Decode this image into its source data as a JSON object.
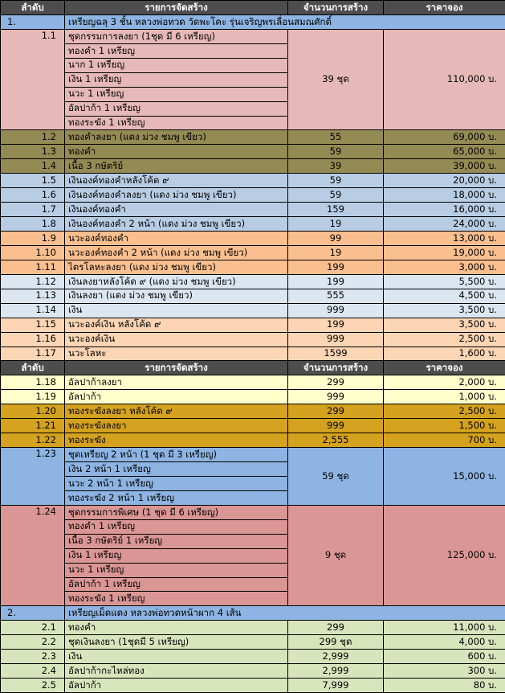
{
  "table": {
    "header_color": "#4d4d4d",
    "sections": [
      {
        "header": [
          "ลำดับ",
          "รายการจัดสร้าง",
          "จำนวนการสร้าง",
          "ราคาจอง"
        ],
        "rows": [
          {
            "no": "1.",
            "title": "เหรียญฉลุ 3 ชั้น หลวงพ่อทวด วัดพะโคะ รุ่นเจริญพรเลื่อนสมณศักดิ์",
            "color": "#8db4e2"
          },
          {
            "no": "1.1",
            "items": [
              "ชุดกรรมการลงยา (1ชุด มี 6 เหรียญ)",
              "ทองคำ 1 เหรียญ",
              "นาก 1 เหรียญ",
              "เงิน 1 เหรียญ",
              "นวะ 1 เหรียญ",
              "อัลปาก้า 1 เหรียญ",
              "ทองระฆัง 1 เหรียญ"
            ],
            "qty": "39 ชุด",
            "price": "110,000 บ.",
            "color": "#e6b9b8"
          },
          {
            "no": "1.2",
            "items": [
              "ทองคำลงยา (แดง ม่วง ชมพู เขียว)"
            ],
            "qty": "55",
            "price": "69,000 บ.",
            "color": "#948a54"
          },
          {
            "no": "1.3",
            "items": [
              "ทองคำ"
            ],
            "qty": "59",
            "price": "65,000 บ.",
            "color": "#948a54"
          },
          {
            "no": "1.4",
            "items": [
              "เนื้อ 3 กษัตริย์"
            ],
            "qty": "39",
            "price": "39,000 บ.",
            "color": "#948a54"
          },
          {
            "no": "1.5",
            "items": [
              "เงินองค์ทองคำหลังโค้ด ๙"
            ],
            "qty": "59",
            "price": "20,000 บ.",
            "color": "#b8cce4"
          },
          {
            "no": "1.6",
            "items": [
              "เงินองค์ทองคำลงยา (แดง ม่วง ชมพู เขียว)"
            ],
            "qty": "59",
            "price": "18,000 บ.",
            "color": "#b8cce4"
          },
          {
            "no": "1.7",
            "items": [
              "เงินองค์ทองคำ"
            ],
            "qty": "159",
            "price": "16,000 บ.",
            "color": "#b8cce4"
          },
          {
            "no": "1.8",
            "items": [
              "เงินองค์ทองคำ 2 หน้า (แดง ม่วง ชมพู เขียว)"
            ],
            "qty": "19",
            "price": "24,000 บ.",
            "color": "#b8cce4"
          },
          {
            "no": "1.9",
            "items": [
              "นวะองค์ทองคำ"
            ],
            "qty": "99",
            "price": "13,000 บ.",
            "color": "#fabf8f"
          },
          {
            "no": "1.10",
            "items": [
              "นวะองค์ทองคำ 2 หน้า (แดง ม่วง ชมพู เขียว)"
            ],
            "qty": "19",
            "price": "19,000 บ.",
            "color": "#fabf8f"
          },
          {
            "no": "1.11",
            "items": [
              "ไตรโลหะลงยา (แดง ม่วง ชมพู เขียว)"
            ],
            "qty": "199",
            "price": "3,000 บ.",
            "color": "#fabf8f"
          },
          {
            "no": "1.12",
            "items": [
              "เงินลงยาหลังโค้ด ๙ (แดง ม่วง ชมพู เขียว)"
            ],
            "qty": "199",
            "price": "5,500 บ.",
            "color": "#dce6f1"
          },
          {
            "no": "1.13",
            "items": [
              "เงินลงยา (แดง ม่วง ชมพู เขียว)"
            ],
            "qty": "555",
            "price": "4,500 บ.",
            "color": "#dce6f1"
          },
          {
            "no": "1.14",
            "items": [
              "เงิน"
            ],
            "qty": "999",
            "price": "3,500 บ.",
            "color": "#dce6f1"
          },
          {
            "no": "1.15",
            "items": [
              "นวะองค์เงิน หลังโค้ด ๙"
            ],
            "qty": "199",
            "price": "3,500 บ.",
            "color": "#fcd5b4"
          },
          {
            "no": "1.16",
            "items": [
              "นวะองค์เงิน"
            ],
            "qty": "999",
            "price": "2,500 บ.",
            "color": "#fcd5b4"
          },
          {
            "no": "1.17",
            "items": [
              "นวะโลหะ"
            ],
            "qty": "1599",
            "price": "1,600 บ.",
            "color": "#fcd5b4"
          }
        ]
      },
      {
        "header": [
          "ลำดับ",
          "รายการจัดสร้าง",
          "จำนวนการสร้าง",
          "ราคาจอง"
        ],
        "rows": [
          {
            "no": "1.18",
            "items": [
              "อัลปาก้าลงยา"
            ],
            "qty": "299",
            "price": "2,000 บ.",
            "color": "#ffffcc"
          },
          {
            "no": "1.19",
            "items": [
              "อัลปาก้า"
            ],
            "qty": "999",
            "price": "1,000 บ.",
            "color": "#ffffcc"
          },
          {
            "no": "1.20",
            "items": [
              "ทองระฆังลงยา หลังโค้ด ๙"
            ],
            "qty": "299",
            "price": "2,500 บ.",
            "color": "#d4a21e"
          },
          {
            "no": "1.21",
            "items": [
              "ทองระฆังลงยา"
            ],
            "qty": "999",
            "price": "1,500 บ.",
            "color": "#d4a21e"
          },
          {
            "no": "1.22",
            "items": [
              "ทองระฆัง"
            ],
            "qty": "2,555",
            "price": "700 บ.",
            "color": "#d4a21e"
          },
          {
            "no": "1.23",
            "items": [
              "ชุดเหรียญ 2 หน้า (1 ชุด มี 3 เหรียญ)",
              "เงิน 2 หน้า 1 เหรียญ",
              "นวะ 2 หน้า 1 เหรียญ",
              "ทองระฆัง 2 หน้า 1 เหรียญ"
            ],
            "qty": "59 ชุด",
            "price": "15,000 บ.",
            "color": "#8db4e2"
          },
          {
            "no": "1.24",
            "items": [
              "ชุดกรรมการพิเศษ (1 ชุด มี 6 เหรียญ)",
              "ทองคำ 1 เหรียญ",
              "เนื้อ 3 กษัตริย์ 1 เหรียญ",
              "เงิน 1 เหรียญ",
              "นวะ 1 เหรียญ",
              "อัลปาก้า 1 เหรียญ",
              "ทองระฆัง 1 เหรียญ"
            ],
            "qty": "9 ชุด",
            "price": "125,000 บ.",
            "color": "#da9694"
          },
          {
            "no": "2.",
            "title": "เหรียญเม็ดแดง หลวงพ่อทวดหน้าผาก 4 เส้น",
            "color": "#8db4e2"
          },
          {
            "no": "2.1",
            "items": [
              "ทองคำ"
            ],
            "qty": "299",
            "price": "11,000 บ.",
            "color": "#d8e4bc"
          },
          {
            "no": "2.2",
            "items": [
              "ชุดเงินลงยา (1ชุดมี 5 เหรียญ)"
            ],
            "qty": "299 ชุด",
            "price": "4,000 บ.",
            "color": "#d8e4bc"
          },
          {
            "no": "2.3",
            "items": [
              "เงิน"
            ],
            "qty": "2,999",
            "price": "600 บ.",
            "color": "#d8e4bc"
          },
          {
            "no": "2.4",
            "items": [
              "อัลปาก้ากะไหล่ทอง"
            ],
            "qty": "2,999",
            "price": "300 บ.",
            "color": "#d8e4bc"
          },
          {
            "no": "2.5",
            "items": [
              "อัลปาก้า"
            ],
            "qty": "7,999",
            "price": "80 บ.",
            "color": "#d8e4bc"
          }
        ]
      }
    ]
  }
}
